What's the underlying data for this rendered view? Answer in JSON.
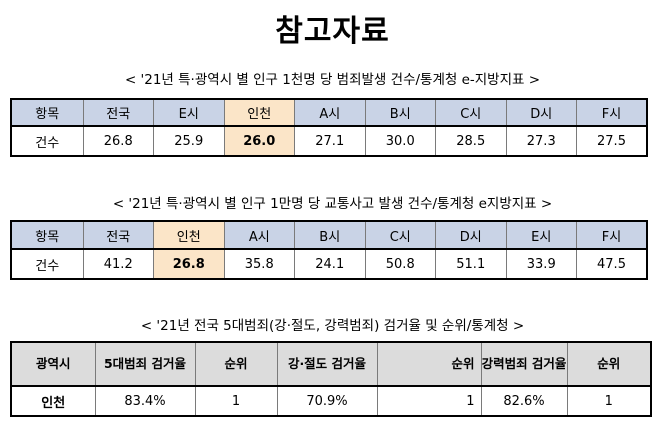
{
  "title": "참고자료",
  "tables": [
    {
      "caption": "< '21년 특·광역시 별 인구 1천명 당 범죄발생 건수/통계청 e-지방지표 >",
      "headers": [
        "항목",
        "전국",
        "E시",
        "인천",
        "A시",
        "B시",
        "C시",
        "D시",
        "F시"
      ],
      "row": [
        "건수",
        "26.8",
        "25.9",
        "26.0",
        "27.1",
        "30.0",
        "28.5",
        "27.3",
        "27.5"
      ]
    },
    {
      "caption": "< '21년 특·광역시 별 인구 1만명 당 교통사고 발생 건수/통계청 e지방지표 >",
      "headers": [
        "항목",
        "전국",
        "인천",
        "A시",
        "B시",
        "C시",
        "D시",
        "E시",
        "F시"
      ],
      "row": [
        "건수",
        "41.2",
        "26.8",
        "35.8",
        "24.1",
        "50.8",
        "51.1",
        "33.9",
        "47.5"
      ]
    },
    {
      "caption": "< '21년 전국 5대범죄(강·절도, 강력범죄) 검거율 및 순위/통계청 >",
      "headers": [
        "광역시",
        "5대범죄 검거율",
        "순위",
        "강·절도 검거율",
        "순위",
        "강력범죄 검거율",
        "순위"
      ],
      "row": [
        "인천",
        "83.4%",
        "1",
        "70.9%",
        "1",
        "82.6%",
        "1"
      ]
    }
  ]
}
